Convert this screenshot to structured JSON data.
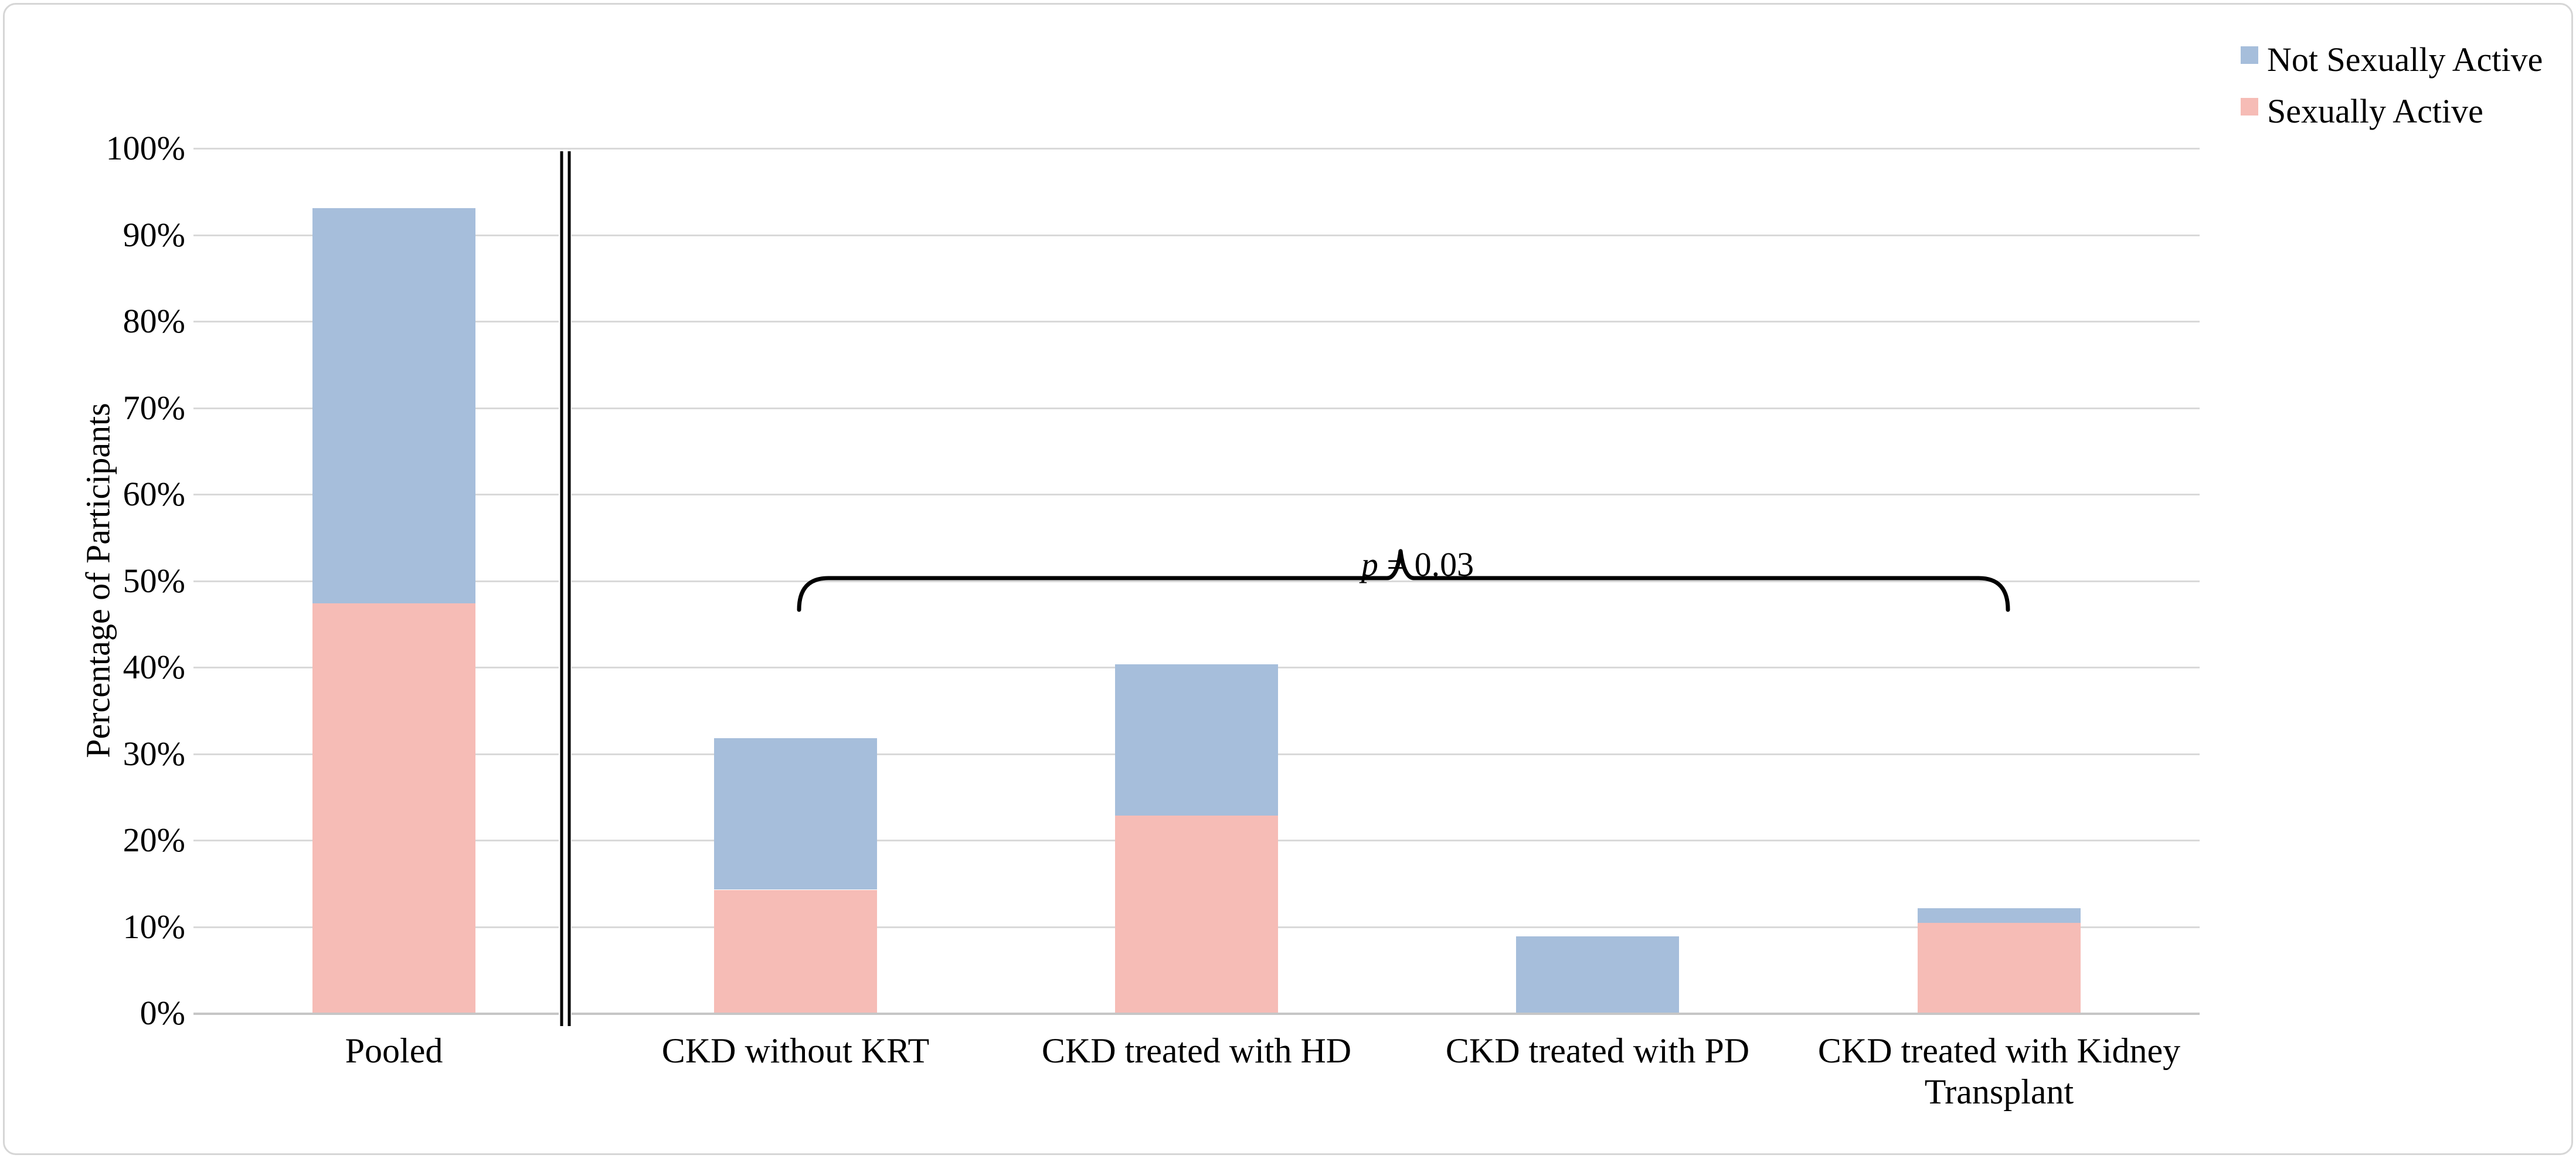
{
  "chart_data": {
    "type": "bar",
    "stacked": true,
    "title": "",
    "ylabel": "Percentage of Participants",
    "ylim": [
      0,
      100
    ],
    "y_tick_step": 10,
    "grid": true,
    "legend_position": "top-right",
    "categories": [
      "Pooled",
      "CKD without KRT",
      "CKD treated with HD",
      "CKD treated with PD",
      "CKD treated with Kidney Transplant"
    ],
    "series": [
      {
        "name": "Sexually Active",
        "color": "#F6BCB6",
        "values": [
          47.3,
          14.2,
          22.8,
          0,
          10.4
        ]
      },
      {
        "name": "Not Sexually Active",
        "color": "#A6BEDB",
        "values": [
          45.7,
          17.5,
          17.5,
          8.8,
          1.7
        ]
      }
    ],
    "stack_totals": [
      93.0,
      31.7,
      40.3,
      8.8,
      12.1
    ],
    "y_ticks": [
      "100%",
      "90%",
      "80%",
      "70%",
      "60%",
      "50%",
      "40%",
      "30%",
      "20%",
      "10%",
      "0%"
    ],
    "axis_break_after_category": "Pooled",
    "annotation": {
      "text": "p = 0.03",
      "italic_part": "p",
      "rest": " = 0.03",
      "brace_from_category": "CKD without KRT",
      "brace_to_category": "CKD treated with Kidney Transplant"
    }
  },
  "legend": {
    "items": [
      {
        "label": "Not Sexually Active",
        "color": "#A6BEDB"
      },
      {
        "label": "Sexually Active",
        "color": "#F6BCB6"
      }
    ]
  },
  "colors": {
    "gridline": "#D9D9D9",
    "axis_line": "#C6C6C6",
    "annotation_line": "#000000"
  }
}
